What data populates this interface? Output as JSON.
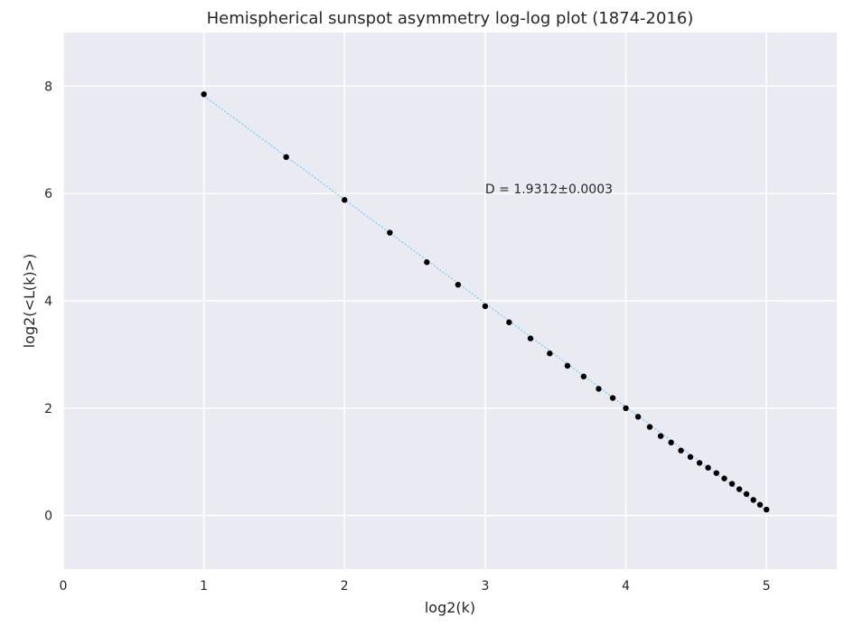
{
  "chart_data": {
    "type": "scatter",
    "title": "Hemispherical sunspot asymmetry log-log plot (1874-2016)",
    "xlabel": "log2(k)",
    "ylabel": "log2(<L(k)>)",
    "xlim": [
      0,
      5.5
    ],
    "ylim": [
      -1,
      9
    ],
    "xticks": [
      "0",
      "1",
      "2",
      "3",
      "4",
      "5"
    ],
    "yticks": [
      "0",
      "2",
      "4",
      "6",
      "8"
    ],
    "grid": true,
    "background": "#eaeaf2",
    "grid_color": "#ffffff",
    "point_color": "#000000",
    "fit_color": "#5bc8f5",
    "annotation": {
      "text": "D = 1.9312±0.0003",
      "x": 3.0,
      "y": 6.0
    },
    "fit_line": {
      "x": [
        1.0,
        5.0
      ],
      "y": [
        7.82,
        0.09
      ]
    },
    "series": [
      {
        "x": [
          1.0,
          1.585,
          2.0,
          2.322,
          2.585,
          2.807,
          3.0,
          3.17,
          3.322,
          3.459,
          3.585,
          3.7,
          3.807,
          3.907,
          4.0,
          4.087,
          4.17,
          4.248,
          4.322,
          4.392,
          4.459,
          4.524,
          4.585,
          4.644,
          4.7,
          4.755,
          4.807,
          4.858,
          4.907,
          4.954,
          5.0
        ],
        "y": [
          7.85,
          6.68,
          5.88,
          5.27,
          4.72,
          4.3,
          3.9,
          3.6,
          3.3,
          3.02,
          2.79,
          2.59,
          2.36,
          2.19,
          2.0,
          1.84,
          1.65,
          1.48,
          1.36,
          1.21,
          1.09,
          0.98,
          0.89,
          0.79,
          0.69,
          0.59,
          0.49,
          0.4,
          0.29,
          0.2,
          0.11
        ]
      }
    ]
  }
}
